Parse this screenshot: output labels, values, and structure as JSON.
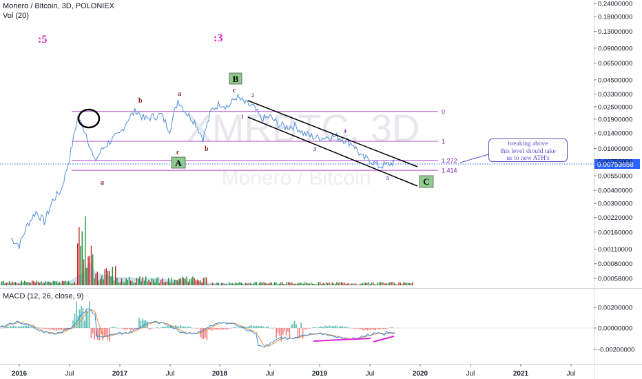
{
  "header": {
    "symbol_line": "Monero / Bitcoin, 3D, POLONIEX",
    "volume_line": "Vol (20)"
  },
  "watermark": {
    "ticker": "XMRBTC, 3D",
    "name": "Monero / Bitcoin"
  },
  "colors": {
    "price_line": "#4e8fd8",
    "fib_line": "#b44bc8",
    "channel_line": "#000000",
    "macd_line": "#2f8ae0",
    "signal_line": "#f08c3a",
    "hist_up": "#26a69a",
    "hist_down": "#ef5350",
    "vol_up": "#1b8a2e",
    "vol_down": "#c62828",
    "wave_label": "#8b1a1a",
    "fractal_label": "#e020c0",
    "current_price_bg": "#2962ff",
    "note_border": "#5b4fc9",
    "wave_box": "#8fcb8f"
  },
  "chart_data": {
    "type": "line",
    "title": "Monero / Bitcoin, 3D, POLONIEX",
    "y_scale": "log",
    "x_ticks": [
      "2016",
      "Jul",
      "2017",
      "Jul",
      "2018",
      "Jul",
      "2019",
      "Jul",
      "2020",
      "Jul",
      "2021",
      "Jul"
    ],
    "y_ticks": [
      "0.24000000",
      "0.18000000",
      "0.13000000",
      "0.09000000",
      "0.06500000",
      "0.04500000",
      "0.03300000",
      "0.02500000",
      "0.01900000",
      "0.01400000",
      "0.01000000",
      "0.00755000",
      "0.00550000",
      "0.00400000",
      "0.00300000",
      "0.00220000",
      "0.00160000",
      "0.00110000",
      "0.00080000",
      "0.00058000"
    ],
    "current_price": "0.00753658",
    "fib_levels": [
      {
        "label": "0",
        "value": 0.0225
      },
      {
        "label": "1",
        "value": 0.0117
      },
      {
        "label": "1.272",
        "value": 0.0077
      },
      {
        "label": "1.414",
        "value": 0.0062
      }
    ],
    "wave_labels": [
      "b",
      "a",
      "c",
      "b",
      "c",
      "a",
      "1",
      "2",
      "3",
      "4",
      "5"
    ],
    "wave_boxes": [
      "A",
      "B",
      "C"
    ],
    "fractal_labels": [
      ":5",
      ":3"
    ],
    "annotation": [
      "breaking above",
      "this level should take",
      "us to new ATH's"
    ],
    "macd": {
      "label": "MACD (12, 26, close, 9)",
      "y_ticks": [
        "0.00200000",
        "0.00000000",
        "-0.00200000"
      ]
    },
    "price_series": [
      {
        "t": "2015-12",
        "v": 0.0014
      },
      {
        "t": "2016-01",
        "v": 0.0012
      },
      {
        "t": "2016-02",
        "v": 0.0019
      },
      {
        "t": "2016-03",
        "v": 0.0025
      },
      {
        "t": "2016-04",
        "v": 0.002
      },
      {
        "t": "2016-05",
        "v": 0.0032
      },
      {
        "t": "2016-06",
        "v": 0.004
      },
      {
        "t": "2016-07",
        "v": 0.008
      },
      {
        "t": "2016-08",
        "v": 0.02
      },
      {
        "t": "2016-09",
        "v": 0.014
      },
      {
        "t": "2016-10",
        "v": 0.0075
      },
      {
        "t": "2016-11",
        "v": 0.01
      },
      {
        "t": "2016-12",
        "v": 0.012
      },
      {
        "t": "2017-01",
        "v": 0.0135
      },
      {
        "t": "2017-02",
        "v": 0.019
      },
      {
        "t": "2017-03",
        "v": 0.023
      },
      {
        "t": "2017-04",
        "v": 0.019
      },
      {
        "t": "2017-05",
        "v": 0.02
      },
      {
        "t": "2017-06",
        "v": 0.021
      },
      {
        "t": "2017-07",
        "v": 0.015
      },
      {
        "t": "2017-08",
        "v": 0.029
      },
      {
        "t": "2017-09",
        "v": 0.022
      },
      {
        "t": "2017-10",
        "v": 0.018
      },
      {
        "t": "2017-11",
        "v": 0.0125
      },
      {
        "t": "2017-12",
        "v": 0.023
      },
      {
        "t": "2018-01",
        "v": 0.027
      },
      {
        "t": "2018-02",
        "v": 0.025
      },
      {
        "t": "2018-03",
        "v": 0.031
      },
      {
        "t": "2018-04",
        "v": 0.027
      },
      {
        "t": "2018-05",
        "v": 0.025
      },
      {
        "t": "2018-06",
        "v": 0.019
      },
      {
        "t": "2018-07",
        "v": 0.02
      },
      {
        "t": "2018-08",
        "v": 0.017
      },
      {
        "t": "2018-09",
        "v": 0.016
      },
      {
        "t": "2018-10",
        "v": 0.0165
      },
      {
        "t": "2018-11",
        "v": 0.014
      },
      {
        "t": "2018-12",
        "v": 0.013
      },
      {
        "t": "2019-01",
        "v": 0.0125
      },
      {
        "t": "2019-02",
        "v": 0.013
      },
      {
        "t": "2019-03",
        "v": 0.013
      },
      {
        "t": "2019-04",
        "v": 0.012
      },
      {
        "t": "2019-05",
        "v": 0.011
      },
      {
        "t": "2019-06",
        "v": 0.0082
      },
      {
        "t": "2019-07",
        "v": 0.0078
      },
      {
        "t": "2019-08",
        "v": 0.0068
      },
      {
        "t": "2019-09",
        "v": 0.007
      },
      {
        "t": "2019-10",
        "v": 0.0075
      }
    ]
  }
}
